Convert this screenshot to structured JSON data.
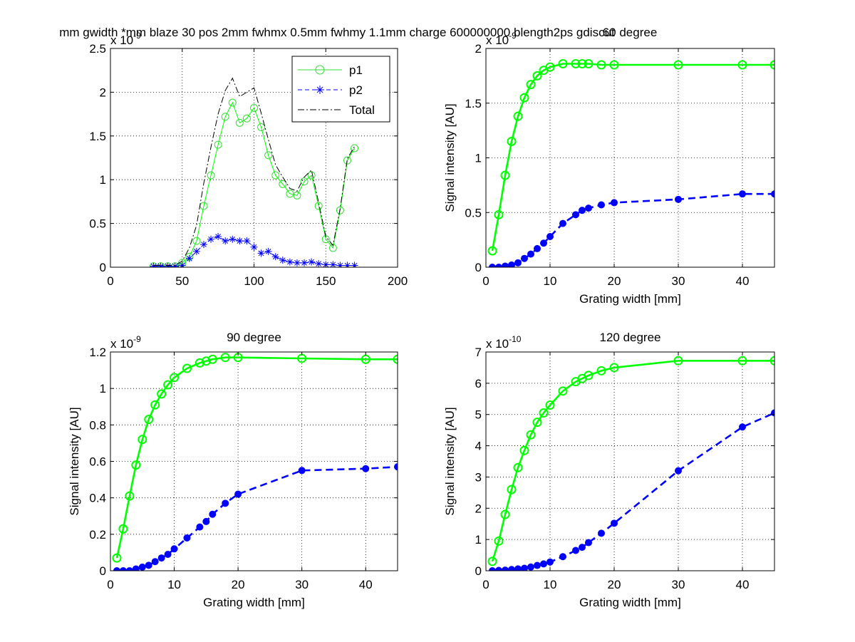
{
  "figure": {
    "overlap_title": "mm gwidth *mm blaze 30 pos 2mm fwhmx 0.5mm fwhmy 1.1mm charge 600000000 blength2ps gdiscut",
    "overlap_title_2": "60 degree"
  },
  "colors": {
    "p1": "#00ff00",
    "p1_light": "#33dd33",
    "p2": "#0000ff",
    "total": "#000000"
  },
  "chart_data": [
    {
      "id": "spectrum",
      "type": "line",
      "title": "",
      "xlabel": "",
      "ylabel": "",
      "xlim": [
        0,
        200
      ],
      "ylim": [
        0,
        2.5
      ],
      "multiplier": "x 10-9",
      "xticks": [
        0,
        50,
        100,
        150,
        200
      ],
      "yticks": [
        0,
        0.5,
        1,
        1.5,
        2,
        2.5
      ],
      "grid": true,
      "legend": "top-right",
      "series": [
        {
          "name": "p1",
          "style": "solid-circles",
          "x": [
            30,
            35,
            40,
            45,
            50,
            55,
            60,
            65,
            70,
            75,
            80,
            85,
            90,
            95,
            100,
            105,
            110,
            115,
            120,
            125,
            130,
            135,
            140,
            145,
            150,
            155,
            160,
            165,
            170
          ],
          "y": [
            0.01,
            0.01,
            0.01,
            0.01,
            0.05,
            0.12,
            0.3,
            0.7,
            1.05,
            1.4,
            1.72,
            1.88,
            1.65,
            1.7,
            1.82,
            1.6,
            1.28,
            1.05,
            0.95,
            0.84,
            0.82,
            0.98,
            1.05,
            0.7,
            0.32,
            0.22,
            0.65,
            1.22,
            1.36
          ]
        },
        {
          "name": "p2",
          "style": "dashed-stars",
          "x": [
            30,
            35,
            40,
            45,
            50,
            55,
            60,
            65,
            70,
            75,
            80,
            85,
            90,
            95,
            100,
            105,
            110,
            115,
            120,
            125,
            130,
            135,
            140,
            145,
            150,
            155,
            160,
            165,
            170
          ],
          "y": [
            0.01,
            0.01,
            0.01,
            0.01,
            0.02,
            0.1,
            0.18,
            0.26,
            0.32,
            0.35,
            0.3,
            0.32,
            0.3,
            0.3,
            0.23,
            0.16,
            0.18,
            0.12,
            0.08,
            0.06,
            0.05,
            0.05,
            0.06,
            0.04,
            0.03,
            0.03,
            0.02,
            0.02,
            0.02
          ]
        },
        {
          "name": "Total",
          "style": "dashdot",
          "x": [
            30,
            35,
            40,
            45,
            50,
            55,
            60,
            65,
            70,
            75,
            80,
            85,
            90,
            95,
            100,
            105,
            110,
            115,
            120,
            125,
            130,
            135,
            140,
            145,
            150,
            155,
            160,
            165,
            170
          ],
          "y": [
            0.02,
            0.02,
            0.02,
            0.02,
            0.07,
            0.22,
            0.48,
            0.96,
            1.37,
            1.75,
            2.02,
            2.16,
            1.95,
            2.0,
            2.05,
            1.76,
            1.46,
            1.17,
            1.03,
            0.9,
            0.87,
            1.03,
            1.11,
            0.74,
            0.35,
            0.25,
            0.67,
            1.24,
            1.38
          ]
        }
      ]
    },
    {
      "id": "deg60",
      "type": "line",
      "title": "",
      "xlabel": "Grating width [mm]",
      "ylabel": "Signal intensity [AU]",
      "xlim": [
        0,
        45
      ],
      "ylim": [
        0,
        2
      ],
      "multiplier": "x 10-9",
      "xticks": [
        0,
        10,
        20,
        30,
        40
      ],
      "yticks": [
        0,
        0.5,
        1,
        1.5,
        2
      ],
      "grid": true,
      "series": [
        {
          "name": "p1",
          "style": "solid-circles",
          "x": [
            1,
            2,
            3,
            4,
            5,
            6,
            7,
            8,
            9,
            10,
            12,
            14,
            15,
            16,
            18,
            20,
            30,
            40,
            45
          ],
          "y": [
            0.15,
            0.48,
            0.84,
            1.15,
            1.38,
            1.55,
            1.67,
            1.75,
            1.8,
            1.83,
            1.86,
            1.86,
            1.86,
            1.86,
            1.85,
            1.85,
            1.85,
            1.85,
            1.85
          ]
        },
        {
          "name": "p2",
          "style": "dashed-dots",
          "x": [
            1,
            2,
            3,
            4,
            5,
            6,
            7,
            8,
            9,
            10,
            12,
            14,
            15,
            16,
            18,
            20,
            30,
            40,
            45
          ],
          "y": [
            0.0,
            0.0,
            0.01,
            0.02,
            0.04,
            0.08,
            0.12,
            0.17,
            0.22,
            0.28,
            0.4,
            0.48,
            0.52,
            0.54,
            0.57,
            0.59,
            0.62,
            0.67,
            0.67
          ]
        }
      ]
    },
    {
      "id": "deg90",
      "type": "line",
      "title": "90 degree",
      "xlabel": "Grating width [mm]",
      "ylabel": "Signal intensity [AU]",
      "xlim": [
        0,
        45
      ],
      "ylim": [
        0,
        1.2
      ],
      "multiplier": "x 10-9",
      "xticks": [
        0,
        10,
        20,
        30,
        40
      ],
      "yticks": [
        0,
        0.2,
        0.4,
        0.6,
        0.8,
        1,
        1.2
      ],
      "grid": true,
      "series": [
        {
          "name": "p1",
          "style": "solid-circles",
          "x": [
            1,
            2,
            3,
            4,
            5,
            6,
            7,
            8,
            9,
            10,
            12,
            14,
            15,
            16,
            18,
            20,
            30,
            40,
            45
          ],
          "y": [
            0.07,
            0.23,
            0.41,
            0.58,
            0.72,
            0.83,
            0.91,
            0.97,
            1.02,
            1.06,
            1.11,
            1.14,
            1.15,
            1.16,
            1.17,
            1.17,
            1.165,
            1.16,
            1.16
          ]
        },
        {
          "name": "p2",
          "style": "dashed-dots",
          "x": [
            1,
            2,
            3,
            4,
            5,
            6,
            7,
            8,
            9,
            10,
            12,
            14,
            15,
            16,
            18,
            20,
            30,
            40,
            45
          ],
          "y": [
            0.0,
            0.0,
            0.0,
            0.01,
            0.02,
            0.03,
            0.05,
            0.07,
            0.09,
            0.12,
            0.18,
            0.24,
            0.27,
            0.31,
            0.37,
            0.42,
            0.55,
            0.56,
            0.57
          ]
        }
      ]
    },
    {
      "id": "deg120",
      "type": "line",
      "title": "120 degree",
      "xlabel": "Grating width [mm]",
      "ylabel": "Signal intensity [AU]",
      "xlim": [
        0,
        45
      ],
      "ylim": [
        0,
        7
      ],
      "multiplier": "x 10-10",
      "xticks": [
        0,
        10,
        20,
        30,
        40
      ],
      "yticks": [
        0,
        1,
        2,
        3,
        4,
        5,
        6,
        7
      ],
      "grid": true,
      "series": [
        {
          "name": "p1",
          "style": "solid-circles",
          "x": [
            1,
            2,
            3,
            4,
            5,
            6,
            7,
            8,
            9,
            10,
            12,
            14,
            15,
            16,
            18,
            20,
            30,
            40,
            45
          ],
          "y": [
            0.3,
            0.95,
            1.8,
            2.6,
            3.3,
            3.85,
            4.35,
            4.75,
            5.05,
            5.3,
            5.75,
            6.05,
            6.15,
            6.25,
            6.4,
            6.5,
            6.72,
            6.72,
            6.72
          ]
        },
        {
          "name": "p2",
          "style": "dashed-dots",
          "x": [
            1,
            2,
            3,
            4,
            5,
            6,
            7,
            8,
            9,
            10,
            12,
            14,
            15,
            16,
            18,
            20,
            30,
            40,
            45
          ],
          "y": [
            0.0,
            0.01,
            0.02,
            0.04,
            0.06,
            0.08,
            0.12,
            0.17,
            0.22,
            0.28,
            0.45,
            0.65,
            0.75,
            0.9,
            1.2,
            1.52,
            3.2,
            4.6,
            5.05
          ]
        }
      ]
    }
  ]
}
